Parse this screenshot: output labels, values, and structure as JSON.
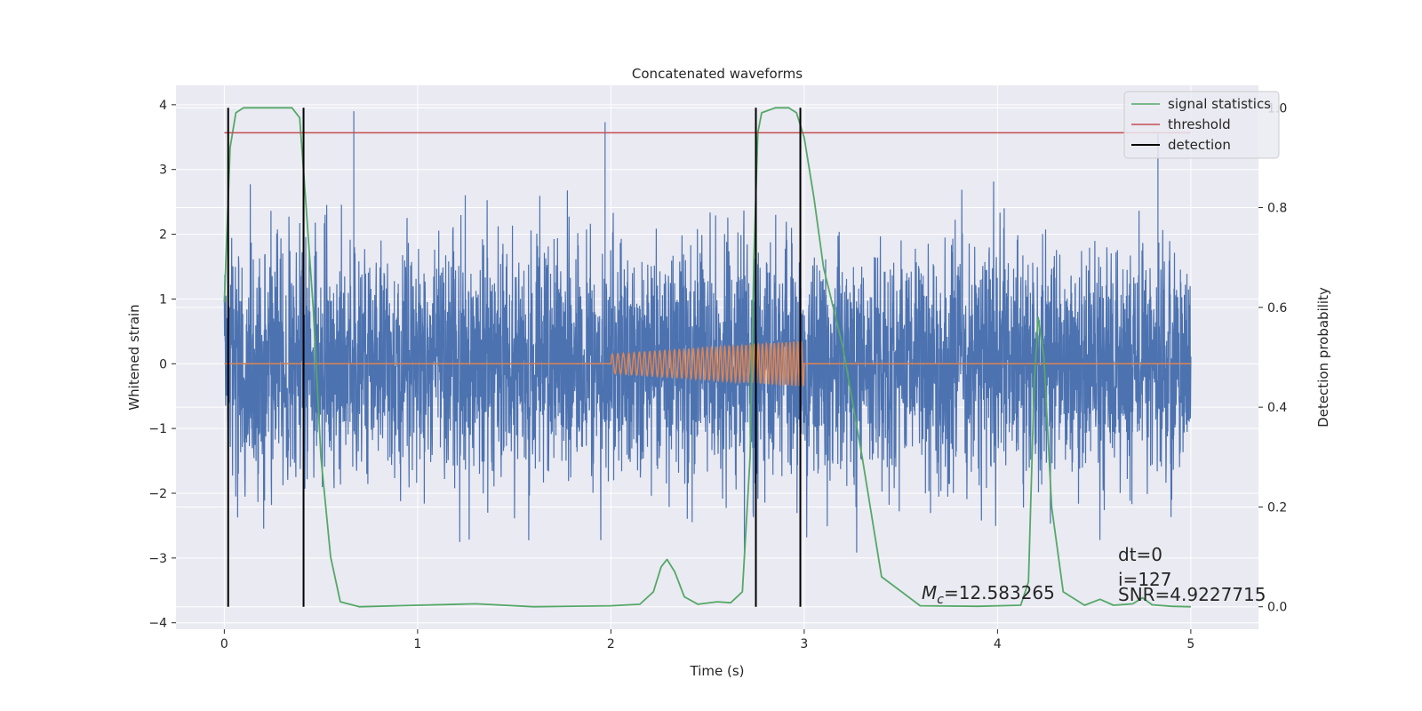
{
  "chart_data": {
    "type": "line",
    "title": "Concatenated waveforms",
    "xlabel": "Time (s)",
    "ylabel_left": "Whitened strain",
    "ylabel_right": "Detection probability",
    "xlim": [
      -0.25,
      5.35
    ],
    "ylim_left": [
      -4.1,
      4.3
    ],
    "ylim_right": [
      -0.045,
      1.045
    ],
    "x_ticks": [
      0,
      1,
      2,
      3,
      4,
      5
    ],
    "x_tick_labels": [
      "0",
      "1",
      "2",
      "3",
      "4",
      "5"
    ],
    "y_left_ticks": [
      4,
      3,
      2,
      1,
      0,
      -1,
      -2,
      -3,
      -4
    ],
    "y_left_tick_labels": [
      "4",
      "3",
      "2",
      "1",
      "0",
      "−1",
      "−2",
      "−3",
      "−4"
    ],
    "y_right_ticks": [
      1.0,
      0.8,
      0.6,
      0.4,
      0.2,
      0.0
    ],
    "y_right_tick_labels": [
      "1.0",
      "0.8",
      "0.6",
      "0.4",
      "0.2",
      "0.0"
    ],
    "grid": true,
    "legend_position": "top-right",
    "colors": {
      "background": "#eaeaf2",
      "grid": "#ffffff",
      "strain": "#4c72b0",
      "injected_waveform": "#dd8452",
      "signal_statistics": "#55a868",
      "threshold": "#c44e52",
      "detection": "#000000"
    },
    "series": [
      {
        "name": "signal statistics",
        "axis": "right",
        "x": [
          0.0,
          0.03,
          0.06,
          0.1,
          0.2,
          0.35,
          0.39,
          0.42,
          0.46,
          0.5,
          0.55,
          0.6,
          0.7,
          1.0,
          1.3,
          1.6,
          2.0,
          2.15,
          2.22,
          2.26,
          2.29,
          2.33,
          2.38,
          2.45,
          2.55,
          2.62,
          2.68,
          2.72,
          2.74,
          2.76,
          2.78,
          2.85,
          2.92,
          2.96,
          3.0,
          3.05,
          3.1,
          3.2,
          3.3,
          3.4,
          3.6,
          3.9,
          4.12,
          4.16,
          4.19,
          4.21,
          4.24,
          4.28,
          4.34,
          4.45,
          4.53,
          4.6,
          4.7,
          4.75,
          4.8,
          4.9,
          5.0
        ],
        "y": [
          0.61,
          0.92,
          0.99,
          1.0,
          1.0,
          1.0,
          0.98,
          0.82,
          0.6,
          0.3,
          0.1,
          0.01,
          0.0,
          0.003,
          0.006,
          0.0,
          0.002,
          0.005,
          0.03,
          0.08,
          0.095,
          0.07,
          0.02,
          0.005,
          0.01,
          0.008,
          0.03,
          0.3,
          0.7,
          0.95,
          0.99,
          1.0,
          1.0,
          0.99,
          0.94,
          0.82,
          0.68,
          0.52,
          0.3,
          0.06,
          0.002,
          0.001,
          0.003,
          0.05,
          0.45,
          0.58,
          0.5,
          0.2,
          0.03,
          0.003,
          0.015,
          0.003,
          0.006,
          0.018,
          0.004,
          0.001,
          0.0
        ]
      },
      {
        "name": "threshold",
        "axis": "right",
        "x": [
          0.0,
          5.0
        ],
        "y": [
          0.95,
          0.95
        ]
      },
      {
        "name": "detection",
        "axis": "right",
        "x": [
          0.02,
          0.41,
          2.75,
          2.98
        ],
        "y_range": [
          0.0,
          1.0
        ]
      },
      {
        "name": "",
        "axis": "left",
        "description_hidden": true,
        "x_range": [
          0.0,
          5.0
        ],
        "noise_std": 0.9,
        "max": 3.93,
        "min": -3.6
      },
      {
        "name": "",
        "axis": "left",
        "x_range": [
          2.0,
          3.0
        ],
        "amplitude_start": 0.15,
        "amplitude_end": 0.35,
        "cycles": 43
      }
    ]
  },
  "annotations": {
    "mc_symbol": "M",
    "mc_subscript": "c",
    "mc_value": "=12.583265",
    "dt": "dt=0",
    "i": "i=127",
    "snr": "SNR=4.9227715"
  },
  "legend": {
    "signal_statistics": "signal statistics",
    "threshold": "threshold",
    "detection": "detection"
  }
}
